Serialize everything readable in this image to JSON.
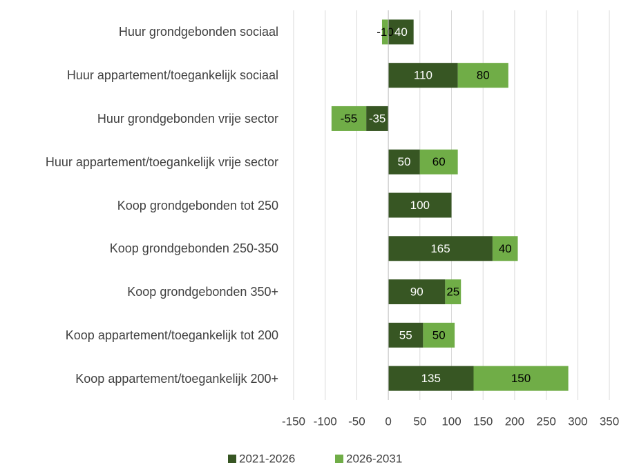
{
  "chart_data": {
    "type": "stacked-barh",
    "categories": [
      "Huur grondgebonden sociaal",
      "Huur appartement/toegankelijk sociaal",
      "Huur grondgebonden vrije sector",
      "Huur appartement/toegankelijk vrije sector",
      "Koop grondgebonden tot 250",
      "Koop grondgebonden 250-350",
      "Koop grondgebonden 350+",
      "Koop appartement/toegankelijk tot 200",
      "Koop appartement/toegankelijk 200+"
    ],
    "series": [
      {
        "name": "2021-2026",
        "color": "#375623",
        "values": [
          40,
          110,
          -35,
          50,
          100,
          165,
          90,
          55,
          135
        ]
      },
      {
        "name": "2026-2031",
        "color": "#70ad47",
        "values": [
          -10,
          80,
          -55,
          60,
          null,
          40,
          25,
          50,
          150
        ]
      }
    ],
    "xlim": [
      -150,
      350
    ],
    "xticks": [
      -150,
      -100,
      -50,
      0,
      50,
      100,
      150,
      200,
      250,
      300,
      350
    ],
    "grid": true,
    "legend": "bottom"
  }
}
